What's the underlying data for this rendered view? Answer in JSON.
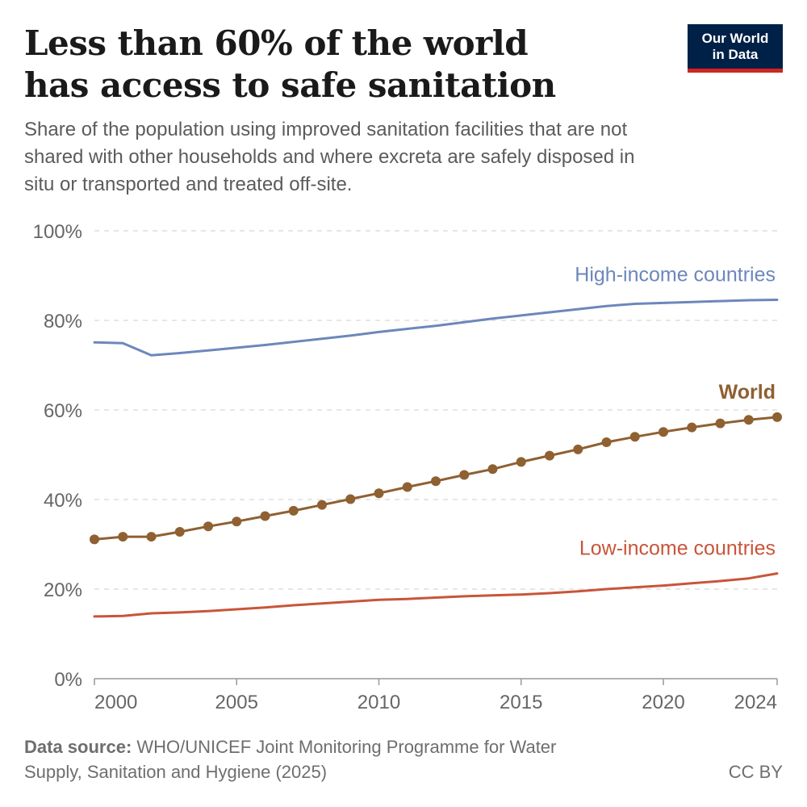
{
  "header": {
    "title_line1": "Less than 60% of the world",
    "title_line2": "has access to safe sanitation",
    "subtitle": "Share of the population using improved sanitation facilities that are not shared with other households and where excreta are safely disposed in situ or transported and treated off-site.",
    "logo_line1": "Our World",
    "logo_line2": "in Data"
  },
  "footer": {
    "source_label": "Data source:",
    "source_text": "WHO/UNICEF Joint Monitoring Programme for Water Supply, Sanitation and Hygiene (2025)",
    "license": "CC BY"
  },
  "colors": {
    "high_income": "#6d87bb",
    "world": "#8f6031",
    "low_income": "#c8553a",
    "grid": "#dddddd",
    "axis_text": "#666666",
    "logo_bg": "#002147",
    "logo_accent": "#ce261e"
  },
  "chart_data": {
    "type": "line",
    "x_ticks": [
      "2000",
      "2005",
      "2010",
      "2015",
      "2020",
      "2024"
    ],
    "y_ticks": [
      "0%",
      "20%",
      "40%",
      "60%",
      "80%",
      "100%"
    ],
    "ylim": [
      0,
      100
    ],
    "xlim": [
      2000,
      2024
    ],
    "grid": "horizontal dashed",
    "series": [
      {
        "name": "High-income countries",
        "color": "#6d87bb",
        "markers": false,
        "x": [
          2000,
          2001,
          2002,
          2003,
          2004,
          2005,
          2006,
          2007,
          2008,
          2009,
          2010,
          2011,
          2012,
          2013,
          2014,
          2015,
          2016,
          2017,
          2018,
          2019,
          2020,
          2021,
          2022,
          2023,
          2024
        ],
        "values": [
          75.1,
          74.9,
          72.2,
          72.7,
          73.3,
          73.9,
          74.5,
          75.2,
          75.9,
          76.6,
          77.4,
          78.1,
          78.8,
          79.6,
          80.4,
          81.1,
          81.8,
          82.5,
          83.2,
          83.7,
          83.9,
          84.1,
          84.3,
          84.5,
          84.6
        ]
      },
      {
        "name": "World",
        "color": "#8f6031",
        "markers": true,
        "x": [
          2000,
          2001,
          2002,
          2003,
          2004,
          2005,
          2006,
          2007,
          2008,
          2009,
          2010,
          2011,
          2012,
          2013,
          2014,
          2015,
          2016,
          2017,
          2018,
          2019,
          2020,
          2021,
          2022,
          2023,
          2024
        ],
        "values": [
          31.1,
          31.7,
          31.7,
          32.8,
          34.0,
          35.1,
          36.3,
          37.5,
          38.8,
          40.1,
          41.4,
          42.8,
          44.1,
          45.5,
          46.8,
          48.4,
          49.8,
          51.2,
          52.8,
          54.0,
          55.1,
          56.1,
          57.0,
          57.8,
          58.4
        ]
      },
      {
        "name": "Low-income countries",
        "color": "#c8553a",
        "markers": false,
        "x": [
          2000,
          2001,
          2002,
          2003,
          2004,
          2005,
          2006,
          2007,
          2008,
          2009,
          2010,
          2011,
          2012,
          2013,
          2014,
          2015,
          2016,
          2017,
          2018,
          2019,
          2020,
          2021,
          2022,
          2023,
          2024
        ],
        "values": [
          13.9,
          14.0,
          14.6,
          14.8,
          15.1,
          15.5,
          15.9,
          16.4,
          16.8,
          17.2,
          17.6,
          17.8,
          18.1,
          18.4,
          18.6,
          18.8,
          19.1,
          19.5,
          20.0,
          20.4,
          20.8,
          21.3,
          21.8,
          22.4,
          23.5
        ]
      }
    ]
  }
}
